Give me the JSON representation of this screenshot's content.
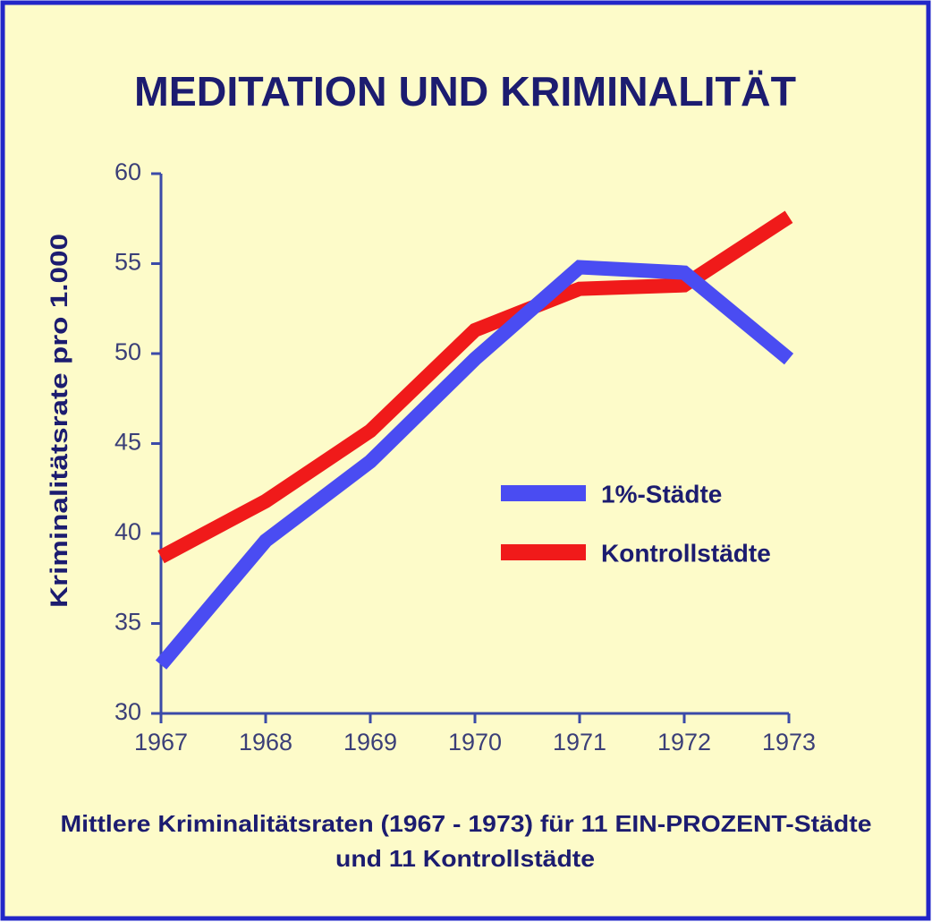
{
  "chart_data": {
    "type": "line",
    "title": "MEDITATION UND KRIMINALITÄT",
    "y_label": "Kriminalitätsrate pro 1.000",
    "caption": [
      "Mittlere Kriminalitätsraten (1967 - 1973) für 11 EIN-PROZENT-Städte",
      "und 11 Kontrollstädte"
    ],
    "x": [
      1967,
      1968,
      1969,
      1970,
      1971,
      1972,
      1973
    ],
    "xlim": [
      1967,
      1973
    ],
    "xticks": [
      1967,
      1968,
      1969,
      1970,
      1971,
      1972,
      1973
    ],
    "ylim": [
      30,
      60
    ],
    "yticks": [
      30,
      35,
      40,
      45,
      50,
      55,
      60
    ],
    "grid": false,
    "legend": "center right",
    "series": [
      {
        "name": "1%-Städte",
        "color": "#4a4cf2",
        "values": [
          32.7,
          39.6,
          44.0,
          49.7,
          54.8,
          54.5,
          49.7
        ]
      },
      {
        "name": "Kontrollstädte",
        "color": "#f01a1a",
        "values": [
          38.7,
          41.8,
          45.7,
          51.3,
          53.6,
          53.8,
          57.6
        ]
      }
    ]
  }
}
